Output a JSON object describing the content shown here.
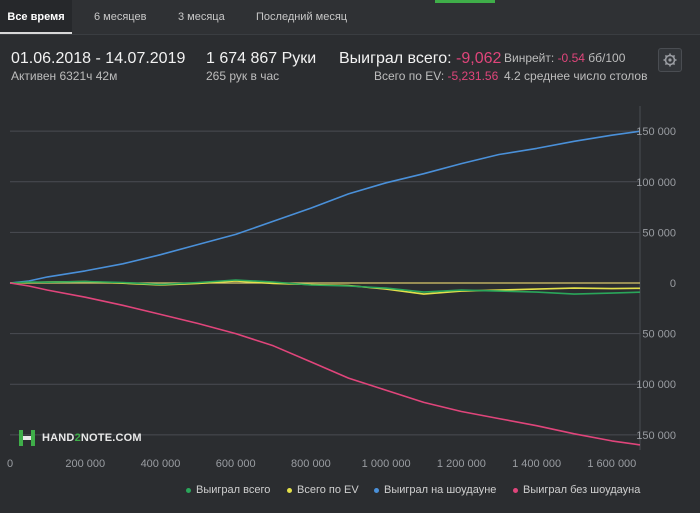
{
  "tabs": [
    {
      "label": "Все время",
      "active": true
    },
    {
      "label": "6 месяцев",
      "active": false
    },
    {
      "label": "3 месяца",
      "active": false
    },
    {
      "label": "Последний месяц",
      "active": false
    }
  ],
  "summary": {
    "date_range": "01.06.2018 - 14.07.2019",
    "active_time": "Активен 6321ч 42м",
    "hands": "1 674 867 Руки",
    "hands_per_hour": "265 рук в час",
    "won_total_label": "Выиграл всего:",
    "won_total_value": "-9,062",
    "ev_total_label": "Всего по EV:",
    "ev_total_value": "-5,231.56",
    "winrate_label": "Винрейт:",
    "winrate_value": "-0.54",
    "winrate_unit": "бб/100",
    "avg_tables": "4.2 среднее число столов"
  },
  "logo": {
    "prefix": "HAND",
    "middle": "2",
    "suffix": "NOTE.COM"
  },
  "colors": {
    "won_total": "#2aa65a",
    "ev_total": "#e3e04a",
    "showdown": "#4a90d9",
    "non_showdown": "#e0457b",
    "grid": "#4a4d52",
    "zero_line": "#d9c96b"
  },
  "chart_data": {
    "type": "line",
    "x_ticks": [
      "0",
      "200 000",
      "400 000",
      "600 000",
      "800 000",
      "1 000 000",
      "1 200 000",
      "1 400 000",
      "1 600 000"
    ],
    "x_tick_values": [
      0,
      200000,
      400000,
      600000,
      800000,
      1000000,
      1200000,
      1400000,
      1600000
    ],
    "y_ticks": [
      "150 000",
      "100 000",
      "50 000",
      "0",
      "50 000",
      "100 000",
      "150 000"
    ],
    "y_tick_values": [
      150000,
      100000,
      50000,
      0,
      -50000,
      -100000,
      -150000
    ],
    "xlim": [
      0,
      1674867
    ],
    "ylim": [
      -165000,
      165000
    ],
    "grid": true,
    "legend_position": "bottom",
    "series": [
      {
        "name": "Выиграл на шоудауне",
        "color_key": "showdown",
        "x": [
          0,
          50000,
          100000,
          200000,
          300000,
          400000,
          500000,
          600000,
          700000,
          800000,
          900000,
          1000000,
          1100000,
          1200000,
          1300000,
          1400000,
          1500000,
          1600000,
          1674867
        ],
        "y": [
          0,
          2000,
          6000,
          12000,
          19000,
          28000,
          38000,
          48000,
          61000,
          74000,
          88000,
          99000,
          108000,
          118000,
          127000,
          133000,
          140000,
          146000,
          150000
        ]
      },
      {
        "name": "Всего по EV",
        "color_key": "ev_total",
        "x": [
          0,
          50000,
          100000,
          200000,
          300000,
          400000,
          500000,
          600000,
          700000,
          800000,
          900000,
          1000000,
          1100000,
          1200000,
          1300000,
          1400000,
          1500000,
          1600000,
          1674867
        ],
        "y": [
          0,
          500,
          1000,
          1500,
          -200,
          -2000,
          -500,
          2000,
          -500,
          -1500,
          -2500,
          -6000,
          -11000,
          -8000,
          -7000,
          -6000,
          -5000,
          -5500,
          -5232
        ]
      },
      {
        "name": "Выиграл всего",
        "color_key": "won_total",
        "x": [
          0,
          50000,
          100000,
          200000,
          300000,
          400000,
          500000,
          600000,
          700000,
          800000,
          900000,
          1000000,
          1100000,
          1200000,
          1300000,
          1400000,
          1500000,
          1600000,
          1674867
        ],
        "y": [
          0,
          1000,
          800,
          1500,
          500,
          -1500,
          500,
          3000,
          1000,
          -2000,
          -3000,
          -5000,
          -9000,
          -7000,
          -8000,
          -9000,
          -11000,
          -10000,
          -9062
        ]
      },
      {
        "name": "Выиграл без шоудауна",
        "color_key": "non_showdown",
        "x": [
          0,
          50000,
          100000,
          200000,
          300000,
          400000,
          500000,
          600000,
          700000,
          800000,
          900000,
          1000000,
          1100000,
          1200000,
          1300000,
          1400000,
          1500000,
          1600000,
          1674867
        ],
        "y": [
          0,
          -3000,
          -7000,
          -14000,
          -22000,
          -31000,
          -40000,
          -50000,
          -62000,
          -78000,
          -94000,
          -106000,
          -118000,
          -127000,
          -134000,
          -141000,
          -149000,
          -156000,
          -160000
        ]
      }
    ]
  },
  "legend": [
    {
      "label": "Выиграл всего",
      "color_key": "won_total"
    },
    {
      "label": "Всего по EV",
      "color_key": "ev_total"
    },
    {
      "label": "Выиграл на шоудауне",
      "color_key": "showdown"
    },
    {
      "label": "Выиграл без шоудауна",
      "color_key": "non_showdown"
    }
  ]
}
